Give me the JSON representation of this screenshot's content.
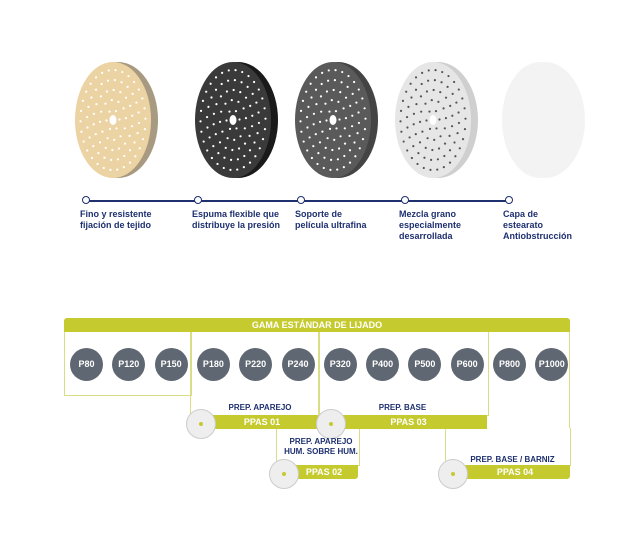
{
  "features": [
    {
      "text": "Fino y resistente\nfijación de tejido",
      "disc": "#ecd3a4",
      "edge": "#a89a80"
    },
    {
      "text": "Espuma flexible que\ndistribuye la presión",
      "disc": "#3a3a3a",
      "edge": "#1a1a1a"
    },
    {
      "text": "Soporte de\npelícula ultrafina",
      "disc": "#5a5a5a",
      "edge": "#444"
    },
    {
      "text": "Mezcla grano\nespecialmente\ndesarrollada",
      "disc": "#e6e6e6",
      "edge": "#cfcfcf"
    },
    {
      "text": "Capa de\nestearato\nAntiobstrucción",
      "disc": "#f3f3f3",
      "edge": "#f3f3f3"
    }
  ],
  "range_title": "GAMA ESTÁNDAR DE LIJADO",
  "grits": [
    "P80",
    "P120",
    "P150",
    "P180",
    "P220",
    "P240",
    "P320",
    "P400",
    "P500",
    "P600",
    "P800",
    "P1000"
  ],
  "products": [
    {
      "name": "PPAS 01",
      "use": "PREP. APAREJO"
    },
    {
      "name": "PPAS 02",
      "use": "PREP. APAREJO\nHUM. SOBRE HUM."
    },
    {
      "name": "PPAS 03",
      "use": "PREP. BASE"
    },
    {
      "name": "PPAS 04",
      "use": "PREP. BASE / BARNIZ"
    }
  ],
  "colors": {
    "accent": "#c5ca2f",
    "navy": "#1e3070",
    "disc": "#5f6772"
  }
}
